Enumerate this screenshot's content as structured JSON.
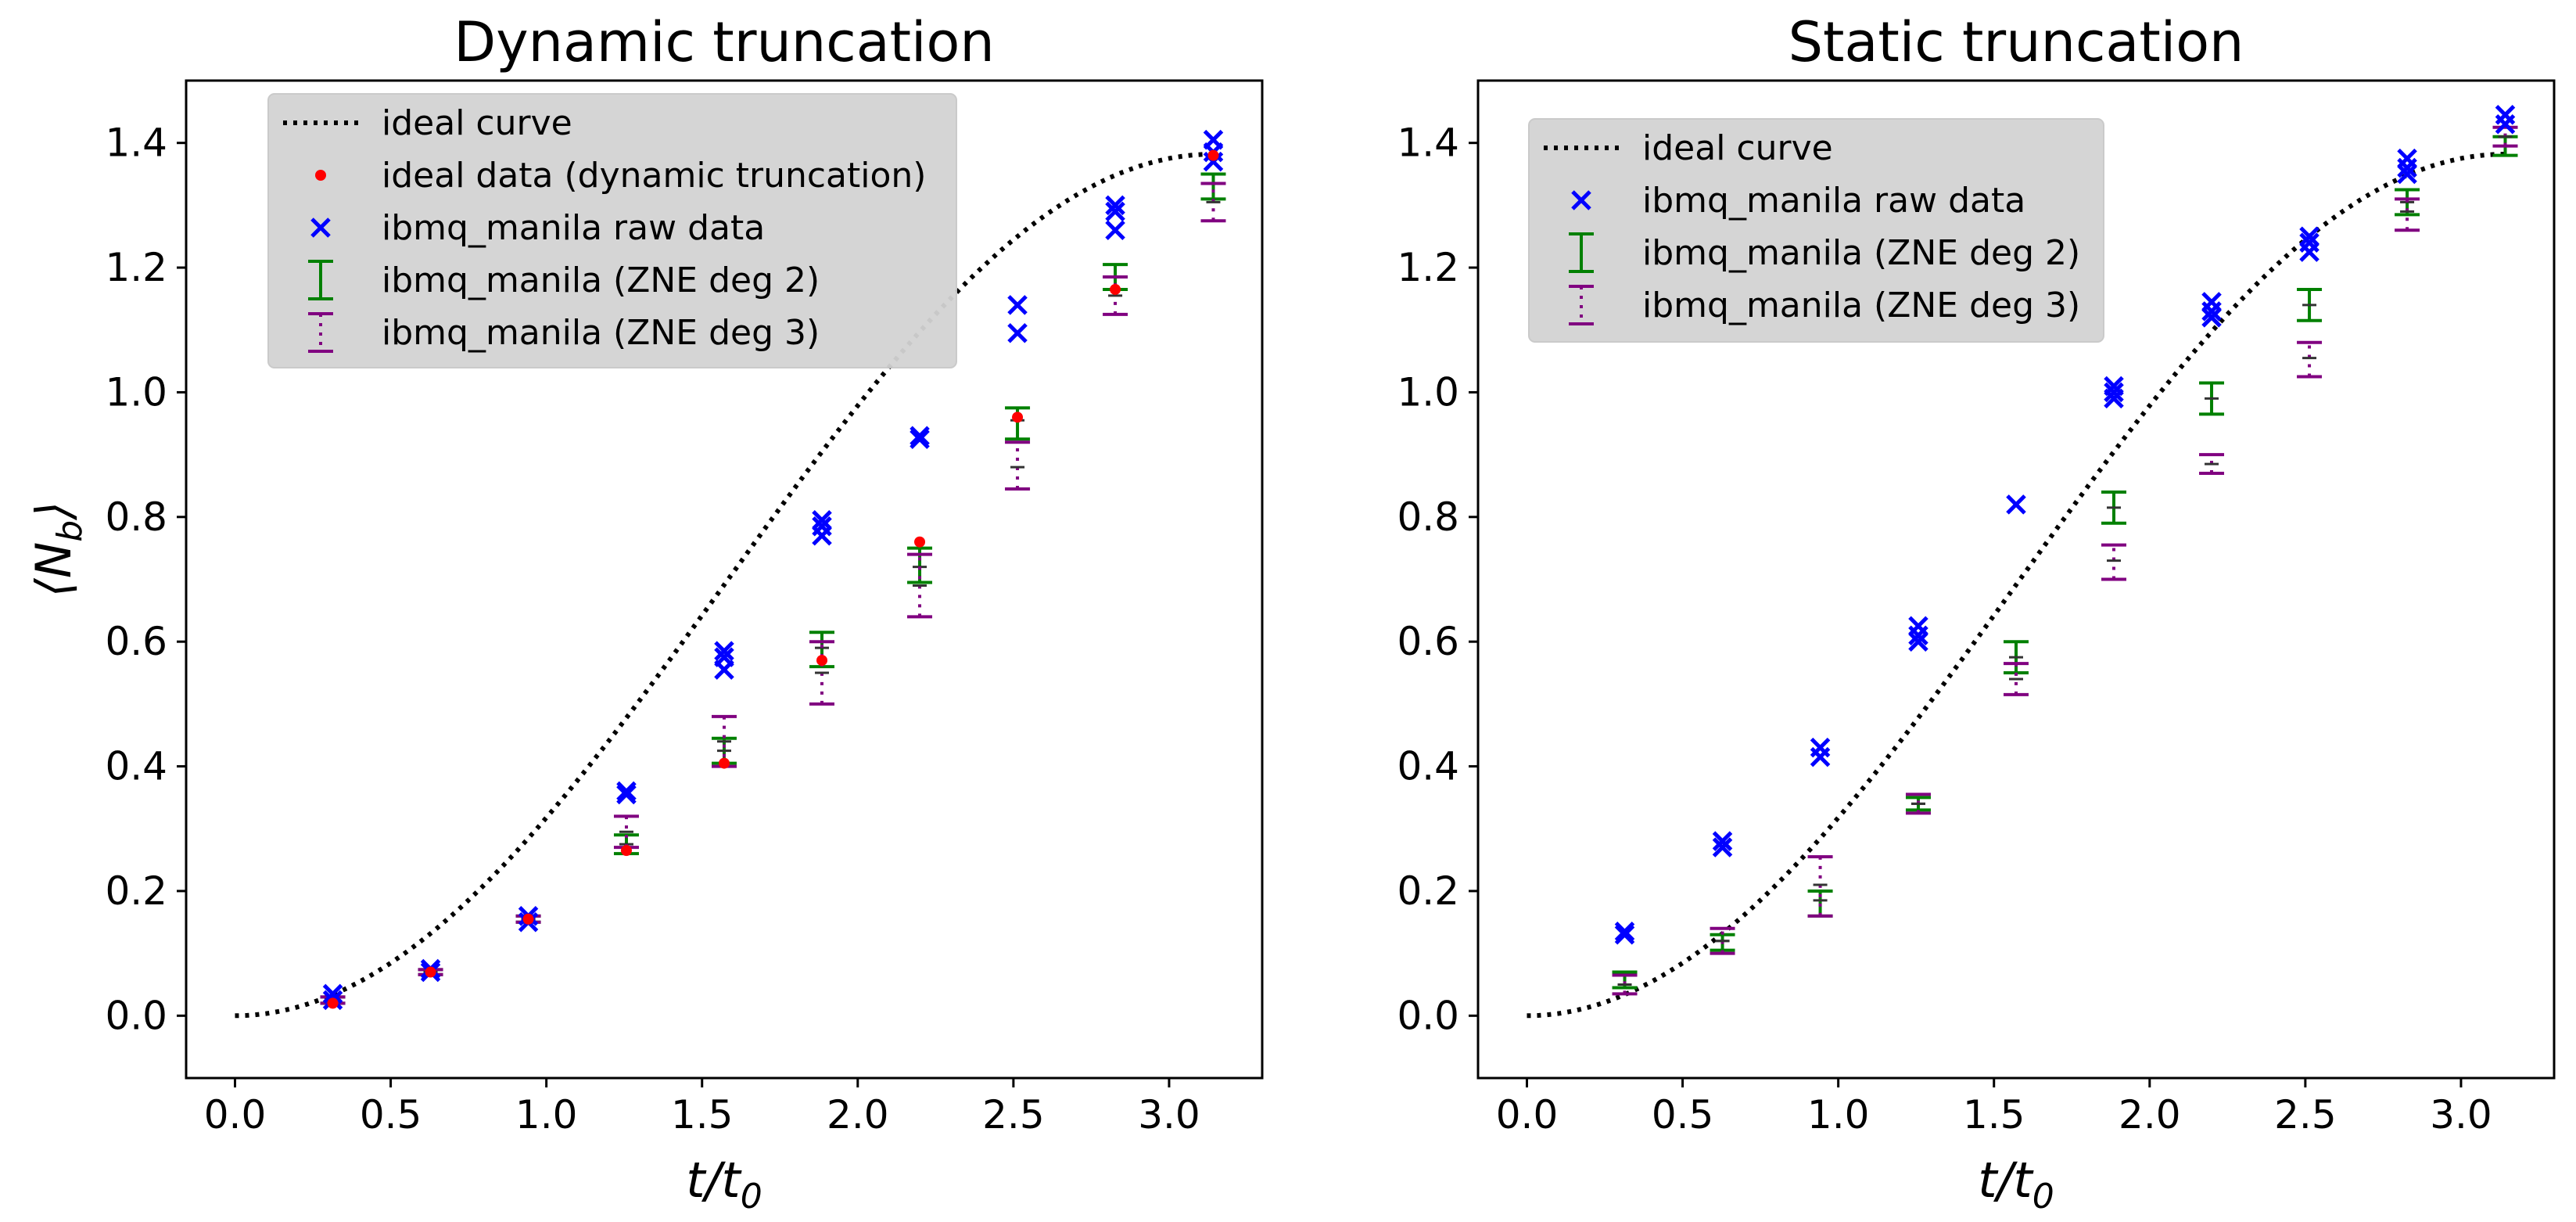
{
  "figure": {
    "ylabel_main": "⟨N",
    "ylabel_sub": "b",
    "ylabel_close": "⟩",
    "xlabel_main": "t/t",
    "xlabel_sub": "0"
  },
  "colors": {
    "ideal_curve": "#000000",
    "ideal_data": "#ff0000",
    "raw": "#0000ff",
    "zne2": "#008000",
    "zne3": "#800080",
    "legend_bg": "#d3d3d3",
    "mean_marker": "#333333"
  },
  "chart_data": [
    {
      "type": "scatter",
      "title": "Dynamic truncation",
      "xlim": [
        -0.157,
        3.299
      ],
      "ylim": [
        -0.1,
        1.5
      ],
      "xticks": [
        "0.0",
        "0.5",
        "1.0",
        "1.5",
        "2.0",
        "2.5",
        "3.0"
      ],
      "yticks": [
        "0.0",
        "0.2",
        "0.4",
        "0.6",
        "0.8",
        "1.0",
        "1.2",
        "1.4"
      ],
      "grid": false,
      "legend_position": "upper-left",
      "legend": [
        {
          "label": "ideal curve",
          "kind": "dotted-line",
          "color": "#000000"
        },
        {
          "label": "ideal data (dynamic truncation)",
          "kind": "dot",
          "color": "#ff0000"
        },
        {
          "label": "ibmq_manila raw data",
          "kind": "cross",
          "color": "#0000ff"
        },
        {
          "label": "ibmq_manila (ZNE deg 2)",
          "kind": "errorbar-solid",
          "color": "#008000"
        },
        {
          "label": "ibmq_manila (ZNE deg 3)",
          "kind": "errorbar-dotted",
          "color": "#800080"
        }
      ],
      "ideal_curve": {
        "x0": 0.0,
        "x1": 3.1416,
        "y_max": 1.382
      },
      "ideal_data": {
        "x": [
          0.314,
          0.628,
          0.942,
          1.257,
          1.571,
          1.885,
          2.199,
          2.513,
          2.827,
          3.142
        ],
        "y": [
          0.02,
          0.07,
          0.155,
          0.265,
          0.405,
          0.57,
          0.76,
          0.96,
          1.165,
          1.38
        ]
      },
      "raw_data": [
        {
          "x": 0.314,
          "y": [
            0.025,
            0.035
          ]
        },
        {
          "x": 0.628,
          "y": [
            0.07,
            0.075
          ]
        },
        {
          "x": 0.942,
          "y": [
            0.15,
            0.16
          ]
        },
        {
          "x": 1.257,
          "y": [
            0.355,
            0.36
          ]
        },
        {
          "x": 1.571,
          "y": [
            0.555,
            0.575,
            0.585
          ]
        },
        {
          "x": 1.885,
          "y": [
            0.77,
            0.785,
            0.795
          ]
        },
        {
          "x": 2.199,
          "y": [
            0.925,
            0.93
          ]
        },
        {
          "x": 2.513,
          "y": [
            1.095,
            1.14
          ]
        },
        {
          "x": 2.827,
          "y": [
            1.26,
            1.29,
            1.3
          ]
        },
        {
          "x": 3.142,
          "y": [
            1.37,
            1.385,
            1.405
          ]
        }
      ],
      "zne2": [
        {
          "x": 0.314,
          "y": 0.025,
          "lo": 0.02,
          "hi": 0.03
        },
        {
          "x": 0.628,
          "y": 0.07,
          "lo": 0.066,
          "hi": 0.074
        },
        {
          "x": 0.942,
          "y": 0.155,
          "lo": 0.15,
          "hi": 0.16
        },
        {
          "x": 1.257,
          "y": 0.275,
          "lo": 0.26,
          "hi": 0.29
        },
        {
          "x": 1.571,
          "y": 0.425,
          "lo": 0.405,
          "hi": 0.445
        },
        {
          "x": 1.885,
          "y": 0.59,
          "lo": 0.56,
          "hi": 0.615
        },
        {
          "x": 2.199,
          "y": 0.72,
          "lo": 0.695,
          "hi": 0.75
        },
        {
          "x": 2.513,
          "y": 0.955,
          "lo": 0.925,
          "hi": 0.975
        },
        {
          "x": 2.827,
          "y": 1.185,
          "lo": 1.165,
          "hi": 1.205
        },
        {
          "x": 3.142,
          "y": 1.335,
          "lo": 1.31,
          "hi": 1.35
        }
      ],
      "zne3": [
        {
          "x": 0.314,
          "y": 0.025,
          "lo": 0.02,
          "hi": 0.03
        },
        {
          "x": 0.628,
          "y": 0.07,
          "lo": 0.066,
          "hi": 0.074
        },
        {
          "x": 0.942,
          "y": 0.155,
          "lo": 0.15,
          "hi": 0.16
        },
        {
          "x": 1.257,
          "y": 0.295,
          "lo": 0.27,
          "hi": 0.32
        },
        {
          "x": 1.571,
          "y": 0.44,
          "lo": 0.4,
          "hi": 0.48
        },
        {
          "x": 1.885,
          "y": 0.55,
          "lo": 0.5,
          "hi": 0.6
        },
        {
          "x": 2.199,
          "y": 0.69,
          "lo": 0.64,
          "hi": 0.74
        },
        {
          "x": 2.513,
          "y": 0.88,
          "lo": 0.845,
          "hi": 0.92
        },
        {
          "x": 2.827,
          "y": 1.155,
          "lo": 1.125,
          "hi": 1.185
        },
        {
          "x": 3.142,
          "y": 1.305,
          "lo": 1.275,
          "hi": 1.335
        }
      ]
    },
    {
      "type": "scatter",
      "title": "Static truncation",
      "xlim": [
        -0.157,
        3.299
      ],
      "ylim": [
        -0.1,
        1.5
      ],
      "xticks": [
        "0.0",
        "0.5",
        "1.0",
        "1.5",
        "2.0",
        "2.5",
        "3.0"
      ],
      "yticks": [
        "0.0",
        "0.2",
        "0.4",
        "0.6",
        "0.8",
        "1.0",
        "1.2",
        "1.4"
      ],
      "grid": false,
      "legend_position": "upper-left",
      "legend": [
        {
          "label": "ideal curve",
          "kind": "dotted-line",
          "color": "#000000"
        },
        {
          "label": "ibmq_manila raw data",
          "kind": "cross",
          "color": "#0000ff"
        },
        {
          "label": "ibmq_manila (ZNE deg 2)",
          "kind": "errorbar-solid",
          "color": "#008000"
        },
        {
          "label": "ibmq_manila (ZNE deg 3)",
          "kind": "errorbar-dotted",
          "color": "#800080"
        }
      ],
      "ideal_curve": {
        "x0": 0.0,
        "x1": 3.1416,
        "y_max": 1.382
      },
      "ideal_data": null,
      "raw_data": [
        {
          "x": 0.314,
          "y": [
            0.13,
            0.135
          ]
        },
        {
          "x": 0.628,
          "y": [
            0.27,
            0.28
          ]
        },
        {
          "x": 0.942,
          "y": [
            0.415,
            0.43
          ]
        },
        {
          "x": 1.257,
          "y": [
            0.6,
            0.61,
            0.625
          ]
        },
        {
          "x": 1.571,
          "y": [
            0.82
          ]
        },
        {
          "x": 1.885,
          "y": [
            0.99,
            1.0,
            1.01
          ]
        },
        {
          "x": 2.199,
          "y": [
            1.12,
            1.13,
            1.145
          ]
        },
        {
          "x": 2.513,
          "y": [
            1.225,
            1.24,
            1.25
          ]
        },
        {
          "x": 2.827,
          "y": [
            1.35,
            1.36,
            1.375
          ]
        },
        {
          "x": 3.142,
          "y": [
            1.43,
            1.445
          ]
        }
      ],
      "zne2": [
        {
          "x": 0.314,
          "y": 0.065,
          "lo": 0.045,
          "hi": 0.07
        },
        {
          "x": 0.628,
          "y": 0.12,
          "lo": 0.105,
          "hi": 0.13
        },
        {
          "x": 0.942,
          "y": 0.185,
          "lo": 0.16,
          "hi": 0.2
        },
        {
          "x": 1.257,
          "y": 0.34,
          "lo": 0.33,
          "hi": 0.35
        },
        {
          "x": 1.571,
          "y": 0.575,
          "lo": 0.55,
          "hi": 0.6
        },
        {
          "x": 1.885,
          "y": 0.815,
          "lo": 0.79,
          "hi": 0.84
        },
        {
          "x": 2.199,
          "y": 0.99,
          "lo": 0.965,
          "hi": 1.015
        },
        {
          "x": 2.513,
          "y": 1.14,
          "lo": 1.115,
          "hi": 1.165
        },
        {
          "x": 2.827,
          "y": 1.305,
          "lo": 1.285,
          "hi": 1.325
        },
        {
          "x": 3.142,
          "y": 1.395,
          "lo": 1.38,
          "hi": 1.41
        }
      ],
      "zne3": [
        {
          "x": 0.314,
          "y": 0.05,
          "lo": 0.035,
          "hi": 0.065
        },
        {
          "x": 0.628,
          "y": 0.12,
          "lo": 0.1,
          "hi": 0.14
        },
        {
          "x": 0.942,
          "y": 0.21,
          "lo": 0.16,
          "hi": 0.255
        },
        {
          "x": 1.257,
          "y": 0.34,
          "lo": 0.325,
          "hi": 0.355
        },
        {
          "x": 1.571,
          "y": 0.54,
          "lo": 0.515,
          "hi": 0.565
        },
        {
          "x": 1.885,
          "y": 0.73,
          "lo": 0.7,
          "hi": 0.755
        },
        {
          "x": 2.199,
          "y": 0.885,
          "lo": 0.87,
          "hi": 0.9
        },
        {
          "x": 2.513,
          "y": 1.055,
          "lo": 1.025,
          "hi": 1.08
        },
        {
          "x": 2.827,
          "y": 1.29,
          "lo": 1.26,
          "hi": 1.31
        },
        {
          "x": 3.142,
          "y": 1.41,
          "lo": 1.395,
          "hi": 1.425
        }
      ]
    }
  ]
}
